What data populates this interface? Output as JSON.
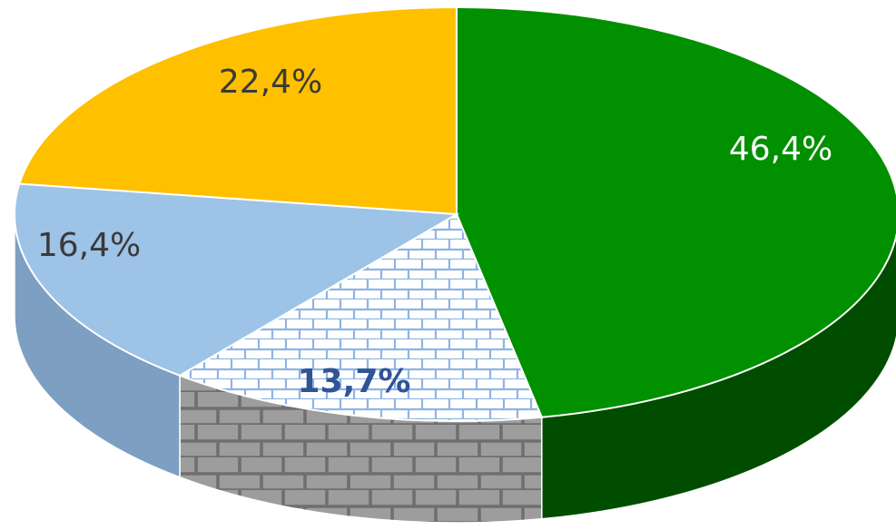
{
  "chart_data": {
    "type": "pie",
    "title": "",
    "style": "3d-pie",
    "start_angle_deg": 0,
    "direction": "clockwise",
    "legend": "none",
    "slices": [
      {
        "label": "46,4%",
        "value": 46.4,
        "color": "#009000",
        "side_color": "#004d00",
        "label_color": "#ffffff",
        "label_bold": false,
        "pattern": "none"
      },
      {
        "label": "13,7%",
        "value": 13.7,
        "color": "#ffffff",
        "side_color": "#9d9d9d",
        "label_color": "#2f5597",
        "label_bold": true,
        "pattern": "bricks",
        "pattern_color": "#8eb4e3",
        "side_pattern_color": "#6f6f6f"
      },
      {
        "label": "16,4%",
        "value": 16.4,
        "color": "#9dc3e6",
        "side_color": "#7d9fc1",
        "label_color": "#3a3a3a",
        "label_bold": false,
        "pattern": "none"
      },
      {
        "label": "22,4%",
        "value": 22.4,
        "color": "#ffc000",
        "side_color": "#c99600",
        "label_color": "#3a3a3a",
        "label_bold": false,
        "pattern": "none"
      }
    ]
  }
}
